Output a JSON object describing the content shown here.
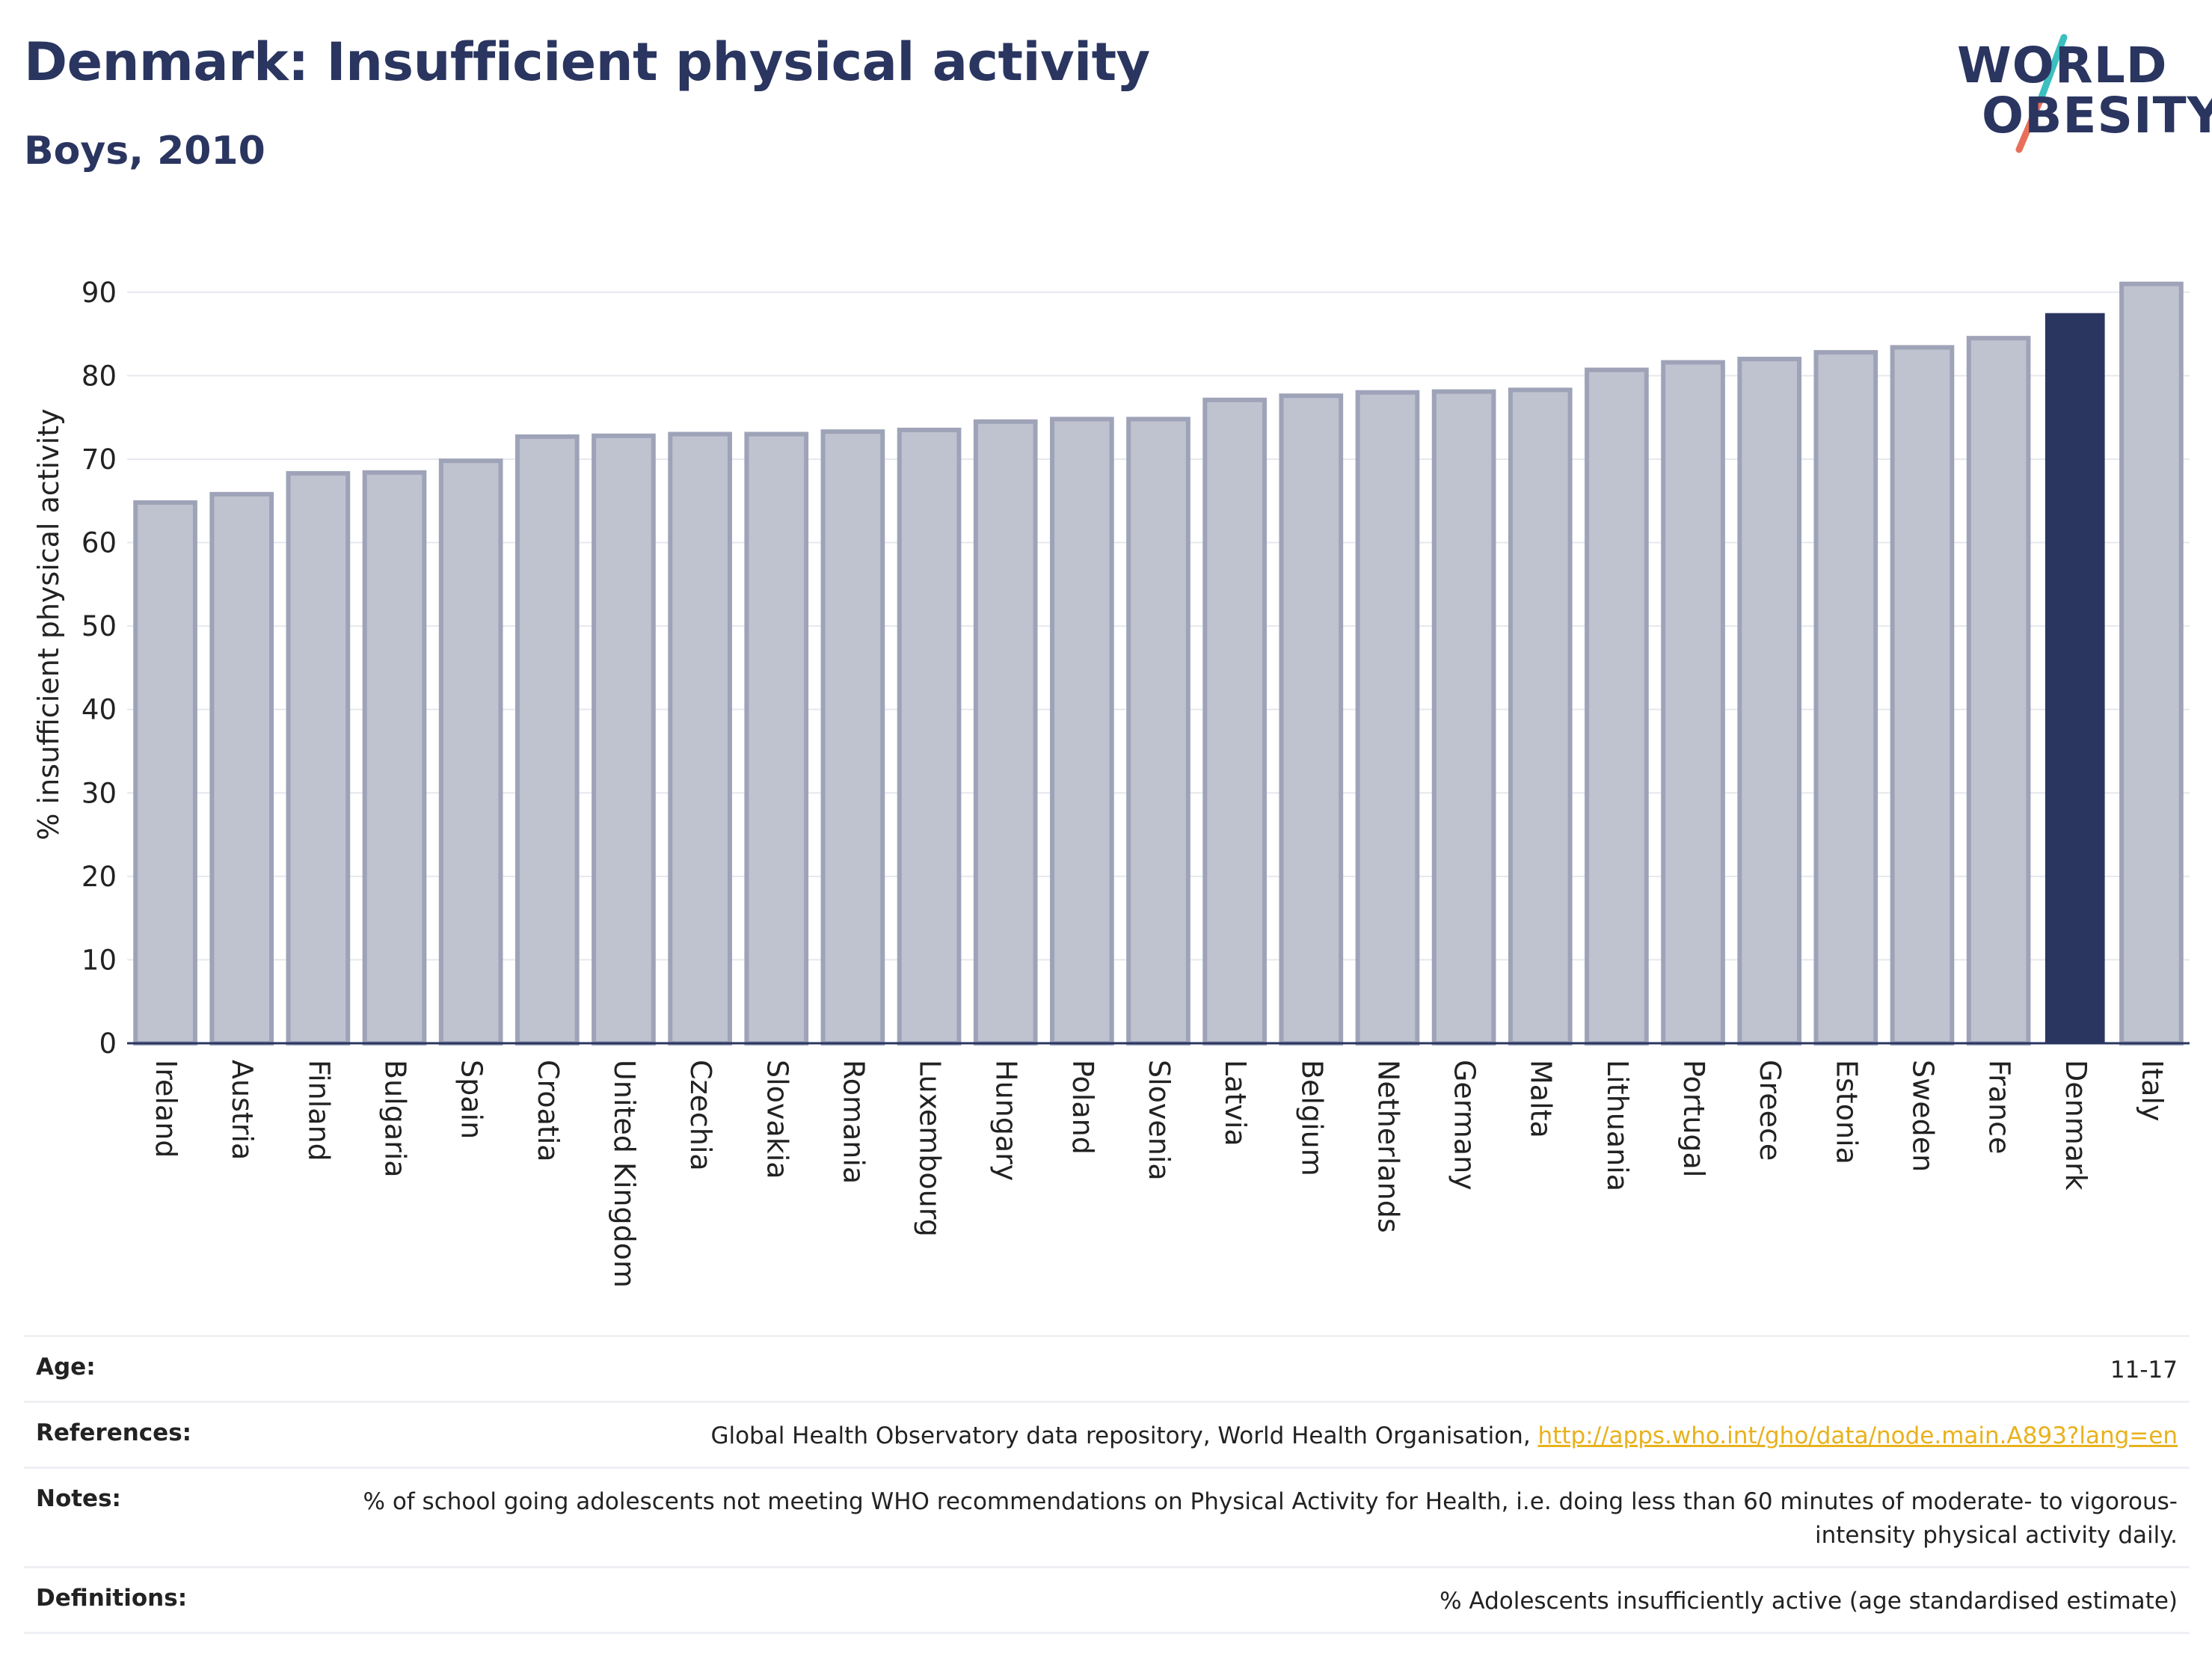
{
  "header": {
    "title": "Denmark: Insufficient physical activity",
    "subtitle": "Boys, 2010"
  },
  "logo": {
    "line1": "WORLD",
    "line2": "OBESITY",
    "slash_colors": [
      "#3bbfbf",
      "#e8705a"
    ]
  },
  "colors": {
    "bar": "#bfc2cf",
    "bar_border": "#9ea3b8",
    "highlight": "#2a3560",
    "axis_text": "#222222",
    "grid": "#e6e8ee"
  },
  "chart_data": {
    "type": "bar",
    "ylabel": "% insufficient physical activity",
    "ylim": [
      0,
      95
    ],
    "yticks": [
      0,
      10,
      20,
      30,
      40,
      50,
      60,
      70,
      80,
      90
    ],
    "grid": true,
    "highlight": "Denmark",
    "categories": [
      "Ireland",
      "Austria",
      "Finland",
      "Bulgaria",
      "Spain",
      "Croatia",
      "United Kingdom",
      "Czechia",
      "Slovakia",
      "Romania",
      "Luxembourg",
      "Hungary",
      "Poland",
      "Slovenia",
      "Latvia",
      "Belgium",
      "Netherlands",
      "Germany",
      "Malta",
      "Lithuania",
      "Portugal",
      "Greece",
      "Estonia",
      "Sweden",
      "France",
      "Denmark",
      "Italy"
    ],
    "values": [
      64.8,
      65.8,
      68.3,
      68.4,
      69.8,
      72.7,
      72.8,
      73.0,
      73.0,
      73.3,
      73.5,
      74.5,
      74.8,
      74.8,
      77.1,
      77.6,
      78.0,
      78.1,
      78.3,
      80.7,
      81.6,
      82.0,
      82.8,
      83.4,
      84.5,
      87.5,
      91.0
    ]
  },
  "meta": [
    {
      "key": "Age:",
      "value": "11-17"
    },
    {
      "key": "References:",
      "value": "Global Health Observatory data repository, World Health Organisation, ",
      "link": "http://apps.who.int/gho/data/node.main.A893?lang=en"
    },
    {
      "key": "Notes:",
      "value": "% of school going adolescents not meeting WHO recommendations on Physical Activity for Health, i.e. doing less than 60 minutes of moderate- to vigorous-intensity physical activity daily."
    },
    {
      "key": "Definitions:",
      "value": "% Adolescents insufficiently active (age standardised estimate)"
    }
  ]
}
